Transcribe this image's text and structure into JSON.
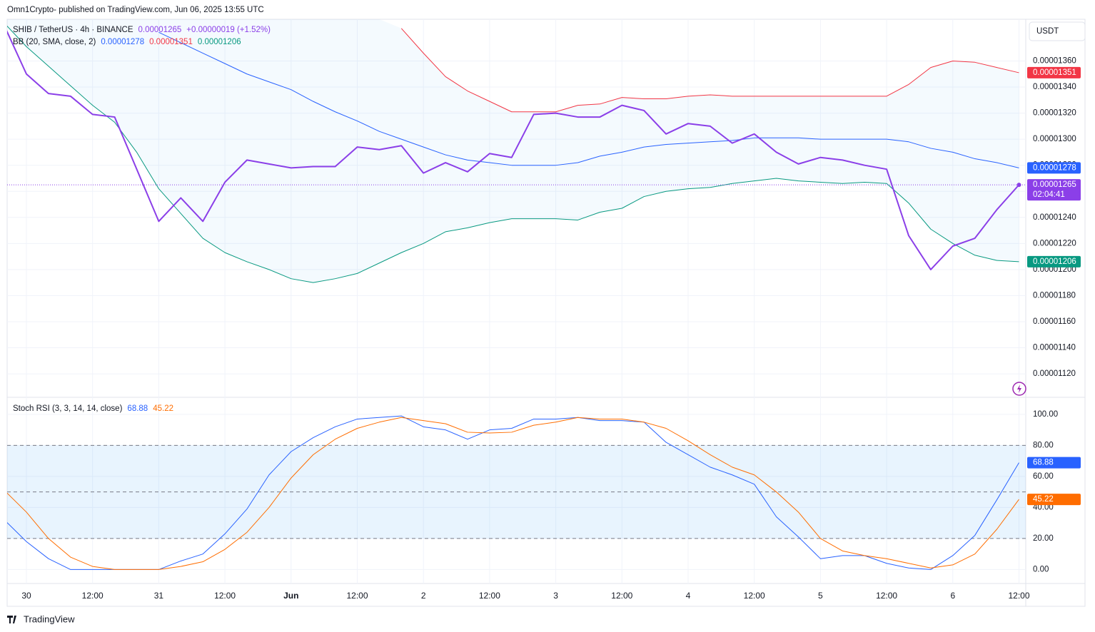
{
  "header": {
    "text": "Omn1Crypto- published on TradingView.com, Jun 06, 2025 13:55 UTC",
    "currency": "USDT",
    "countdown": "02:04:41",
    "footer": "TradingView"
  },
  "chart_data": [
    {
      "type": "line",
      "title": "SHIB / TetherUS · 4h · BINANCE",
      "change": "+0.00000019 (+1.52%)",
      "indicator": "BB (20, SMA, close, 2)",
      "categories": [
        null,
        "30",
        null,
        null,
        "12:00",
        null,
        null,
        "31",
        null,
        null,
        "12:00",
        null,
        null,
        "Jun",
        null,
        null,
        "12:00",
        null,
        null,
        "2",
        null,
        null,
        "12:00",
        null,
        null,
        "3",
        null,
        null,
        "12:00",
        null,
        null,
        "4",
        null,
        null,
        "12:00",
        null,
        null,
        "5",
        null,
        null,
        "12:00",
        null,
        null,
        "6",
        null,
        null,
        "12:00"
      ],
      "series": [
        {
          "name": "SHIB / TetherUS · 4h · BINANCE",
          "color": "#8b3fe8",
          "values": [
            1.387e-05,
            1.35e-05,
            1.335e-05,
            1.333e-05,
            1.319e-05,
            1.317e-05,
            1.277e-05,
            1.237e-05,
            1.255e-05,
            1.237e-05,
            1.267e-05,
            1.284e-05,
            1.281e-05,
            1.278e-05,
            1.279e-05,
            1.279e-05,
            1.294e-05,
            1.292e-05,
            1.295e-05,
            1.274e-05,
            1.282e-05,
            1.275e-05,
            1.289e-05,
            1.286e-05,
            1.319e-05,
            1.32e-05,
            1.317e-05,
            1.317e-05,
            1.326e-05,
            1.322e-05,
            1.304e-05,
            1.312e-05,
            1.31e-05,
            1.297e-05,
            1.304e-05,
            1.29e-05,
            1.281e-05,
            1.286e-05,
            1.284e-05,
            1.28e-05,
            1.277e-05,
            1.226e-05,
            1.2e-05,
            1.218e-05,
            1.224e-05,
            1.246e-05,
            1.265e-05
          ]
        },
        {
          "color": "#2962ff",
          "values": [
            null,
            null,
            null,
            null,
            null,
            null,
            null,
            1.382e-05,
            1.374e-05,
            1.366e-05,
            1.358e-05,
            1.35e-05,
            1.344e-05,
            1.338e-05,
            1.329e-05,
            1.321e-05,
            1.314e-05,
            1.306e-05,
            1.3e-05,
            1.294e-05,
            1.288e-05,
            1.284e-05,
            1.282e-05,
            1.28e-05,
            1.28e-05,
            1.28e-05,
            1.282e-05,
            1.287e-05,
            1.29e-05,
            1.294e-05,
            1.296e-05,
            1.297e-05,
            1.298e-05,
            1.299e-05,
            1.301e-05,
            1.301e-05,
            1.301e-05,
            1.3e-05,
            1.3e-05,
            1.3e-05,
            1.3e-05,
            1.298e-05,
            1.293e-05,
            1.29e-05,
            1.285e-05,
            1.282e-05,
            1.278e-05
          ]
        },
        {
          "color": "#f23645",
          "values": [
            null,
            null,
            null,
            null,
            null,
            null,
            null,
            null,
            null,
            null,
            null,
            null,
            null,
            null,
            null,
            null,
            null,
            null,
            1.385e-05,
            1.366e-05,
            1.348e-05,
            1.337e-05,
            1.329e-05,
            1.321e-05,
            1.321e-05,
            1.321e-05,
            1.326e-05,
            1.327e-05,
            1.332e-05,
            1.331e-05,
            1.331e-05,
            1.333e-05,
            1.334e-05,
            1.333e-05,
            1.333e-05,
            1.333e-05,
            1.333e-05,
            1.333e-05,
            1.333e-05,
            1.333e-05,
            1.333e-05,
            1.342e-05,
            1.355e-05,
            1.36e-05,
            1.359e-05,
            1.355e-05,
            1.351e-05
          ]
        },
        {
          "color": "#089981",
          "values": [
            1.389e-05,
            1.371e-05,
            1.356e-05,
            1.341e-05,
            1.326e-05,
            1.313e-05,
            1.29e-05,
            1.262e-05,
            1.243e-05,
            1.224e-05,
            1.213e-05,
            1.206e-05,
            1.2e-05,
            1.193e-05,
            1.19e-05,
            1.193e-05,
            1.197e-05,
            1.205e-05,
            1.213e-05,
            1.22e-05,
            1.229e-05,
            1.232e-05,
            1.236e-05,
            1.239e-05,
            1.239e-05,
            1.239e-05,
            1.238e-05,
            1.244e-05,
            1.247e-05,
            1.256e-05,
            1.26e-05,
            1.262e-05,
            1.263e-05,
            1.266e-05,
            1.268e-05,
            1.27e-05,
            1.268e-05,
            1.267e-05,
            1.266e-05,
            1.267e-05,
            1.266e-05,
            1.251e-05,
            1.231e-05,
            1.22e-05,
            1.211e-05,
            1.207e-05,
            1.206e-05
          ]
        }
      ],
      "ylim": [
        1.102e-05,
        1.392e-05
      ],
      "yticks": [
        {
          "value": 1.12e-05,
          "label": "0.00001120"
        },
        {
          "value": 1.14e-05,
          "label": "0.00001140"
        },
        {
          "value": 1.16e-05,
          "label": "0.00001160"
        },
        {
          "value": 1.18e-05,
          "label": "0.00001180"
        },
        {
          "value": 1.2e-05,
          "label": "0.00001200"
        },
        {
          "value": 1.22e-05,
          "label": "0.00001220"
        },
        {
          "value": 1.24e-05,
          "label": "0.00001240"
        },
        {
          "value": 1.26e-05,
          "label": "0.00001260"
        },
        {
          "value": 1.28e-05,
          "label": "0.00001280"
        },
        {
          "value": 1.3e-05,
          "label": "0.00001300"
        },
        {
          "value": 1.32e-05,
          "label": "0.00001320"
        },
        {
          "value": 1.34e-05,
          "label": "0.00001340"
        },
        {
          "value": 1.36e-05,
          "label": "0.00001360"
        }
      ],
      "grid": true
    },
    {
      "type": "line",
      "title": "Stoch RSI (3, 3, 14, 14, close)",
      "series": [
        {
          "color": "#2962ff",
          "values": [
            32,
            18,
            7,
            0,
            0,
            0,
            0,
            0,
            5.5,
            10,
            23,
            39,
            61,
            76,
            85,
            92,
            97,
            98,
            99,
            92,
            90,
            84,
            90,
            91,
            97,
            97,
            98,
            96,
            96,
            95,
            82,
            74,
            66,
            61,
            55,
            34,
            21,
            7,
            9,
            9,
            4,
            1,
            0,
            9,
            22,
            45,
            68.88
          ]
        },
        {
          "color": "#ff6d00",
          "values": [
            51,
            37,
            20,
            8,
            2,
            0,
            0,
            0,
            2,
            5,
            13,
            24,
            40,
            59,
            74,
            84,
            91,
            95,
            98,
            96,
            94,
            88.5,
            88,
            88.5,
            93,
            95,
            98,
            97,
            97,
            95,
            91,
            83,
            74,
            66,
            61,
            50,
            37,
            20,
            12,
            9,
            7,
            4,
            1,
            3,
            10,
            26,
            45.22
          ]
        }
      ],
      "levels": [
        20,
        50,
        80
      ],
      "ylim": [
        -9,
        111
      ],
      "yticks": [
        {
          "value": 0,
          "label": "0.00"
        },
        {
          "value": 20,
          "label": "20.00"
        },
        {
          "value": 40,
          "label": "40.00"
        },
        {
          "value": 60,
          "label": "60.00"
        },
        {
          "value": 80,
          "label": "80.00"
        },
        {
          "value": 100,
          "label": "100.00"
        }
      ],
      "grid": true
    }
  ]
}
